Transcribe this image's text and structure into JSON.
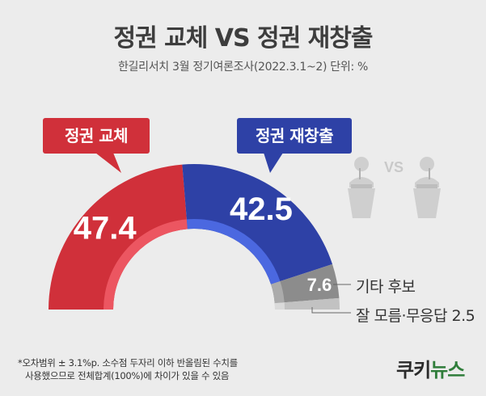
{
  "title": "정권 교체 VS 정권 재창출",
  "subtitle": "한길리서치 3월 정기여론조사(2022.3.1~2) 단위: %",
  "note_line1": "*오차범위 ± 3.1%p. 소수점 두자리 이하 반올림된 수치를",
  "note_line2": "사용했으므로 전체합계(100%)에 차이가 있을 수 있음",
  "logo_text_a": "쿠키",
  "logo_text_b": "뉴스",
  "vs_label": "VS",
  "colors": {
    "red": "#d0303a",
    "blue": "#2e41a6",
    "gray": "#8c8c8c",
    "lightgray": "#c2c2c2"
  },
  "chart_data": {
    "type": "pie",
    "variant": "semi-donut",
    "title": "정권 교체 VS 정권 재창출",
    "categories": [
      "정권 교체",
      "정권 재창출",
      "기타 후보",
      "잘 모름·무응답"
    ],
    "values": [
      47.4,
      42.5,
      7.6,
      2.5
    ],
    "value_labels": [
      "47.4",
      "42.5",
      "7.6",
      ""
    ],
    "legend_labels": [
      "정권 교체",
      "정권 재창출",
      "기타 후보",
      "잘 모름·무응답 2.5"
    ]
  }
}
